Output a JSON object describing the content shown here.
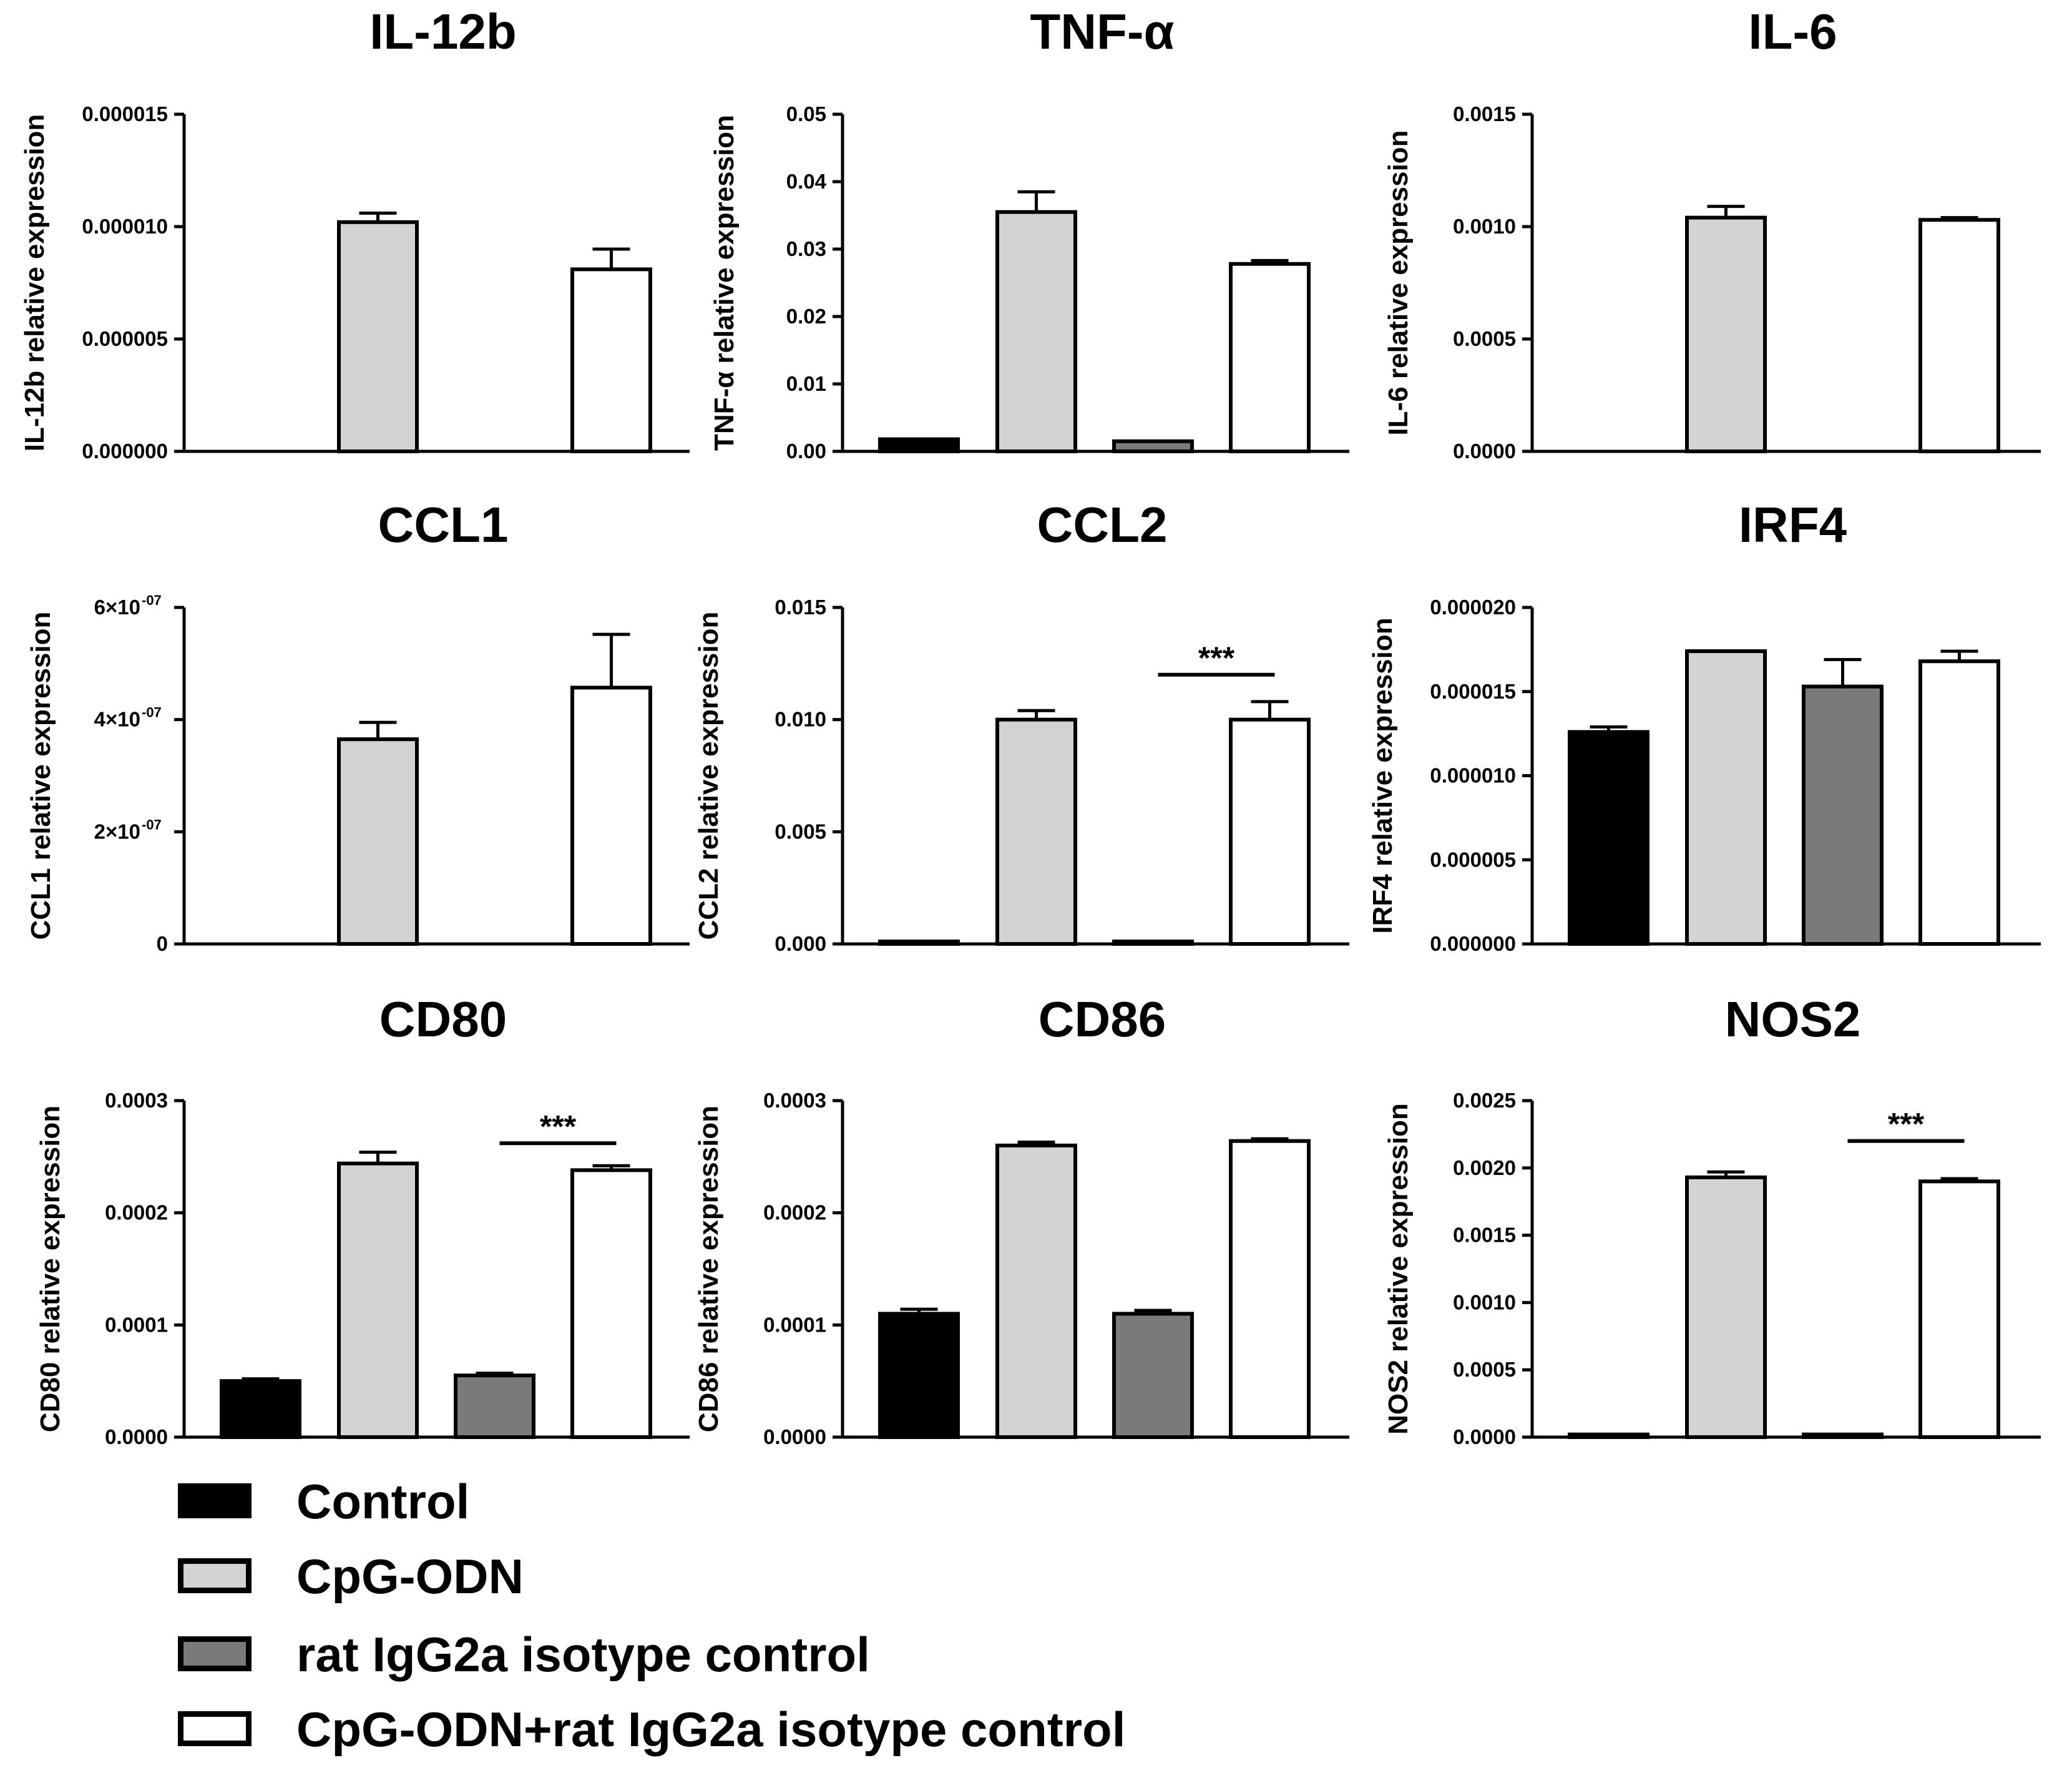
{
  "legend": [
    {
      "name": "Control",
      "color": "#000000"
    },
    {
      "name": "CpG-ODN",
      "color": "#d3d3d3"
    },
    {
      "name": "rat IgG2a isotype control",
      "color": "#7a7a7a"
    },
    {
      "name": "CpG-ODN+rat IgG2a isotype control",
      "color": "#ffffff"
    }
  ],
  "chart_data": [
    {
      "type": "bar",
      "title": "IL-12b",
      "ylabel": "IL-12b relative expression",
      "categories": [
        "Control",
        "CpG-ODN",
        "rat IgG2a isotype control",
        "CpG-ODN+rat IgG2a isotype control"
      ],
      "values": [
        0,
        1.02e-05,
        0,
        8.1e-06
      ],
      "errors": [
        0,
        4e-07,
        0,
        9e-07
      ],
      "ylim": [
        0,
        1.5e-05
      ],
      "ticks": [
        0,
        5e-06,
        1e-05,
        1.5e-05
      ],
      "tick_labels": [
        "0.000000",
        "0.000005",
        "0.000010",
        "0.000015"
      ],
      "annotations": []
    },
    {
      "type": "bar",
      "title": "TNF-α",
      "ylabel": "TNF-α relative expression",
      "categories": [
        "Control",
        "CpG-ODN",
        "rat IgG2a isotype control",
        "CpG-ODN+rat IgG2a isotype control"
      ],
      "values": [
        0.0018,
        0.0355,
        0.0015,
        0.0278
      ],
      "errors": [
        0,
        0.003,
        0,
        0.0005
      ],
      "ylim": [
        0,
        0.05
      ],
      "ticks": [
        0,
        0.01,
        0.02,
        0.03,
        0.04,
        0.05
      ],
      "tick_labels": [
        "0.00",
        "0.01",
        "0.02",
        "0.03",
        "0.04",
        "0.05"
      ],
      "annotations": []
    },
    {
      "type": "bar",
      "title": "IL-6",
      "ylabel": "IL-6 relative expression",
      "categories": [
        "Control",
        "CpG-ODN",
        "rat IgG2a isotype control",
        "CpG-ODN+rat IgG2a isotype control"
      ],
      "values": [
        0,
        0.00104,
        0,
        0.00103
      ],
      "errors": [
        0,
        5e-05,
        0,
        1e-05
      ],
      "ylim": [
        0,
        0.0015
      ],
      "ticks": [
        0,
        0.0005,
        0.001,
        0.0015
      ],
      "tick_labels": [
        "0.0000",
        "0.0005",
        "0.0010",
        "0.0015"
      ],
      "annotations": []
    },
    {
      "type": "bar",
      "title": "CCL1",
      "ylabel": "CCL1 relative expression",
      "categories": [
        "Control",
        "CpG-ODN",
        "rat IgG2a isotype control",
        "CpG-ODN+rat IgG2a isotype control"
      ],
      "values": [
        0,
        3.65e-07,
        0,
        4.57e-07
      ],
      "errors": [
        0,
        3e-08,
        0,
        9.5e-08
      ],
      "ylim": [
        0,
        6e-07
      ],
      "ticks": [
        0,
        2e-07,
        4e-07,
        6e-07
      ],
      "tick_labels": [
        "0",
        "2×10",
        "4×10",
        "6×10"
      ],
      "tick_exponents": [
        "",
        "-07",
        "-07",
        "-07"
      ],
      "annotations": []
    },
    {
      "type": "bar",
      "title": "CCL2",
      "ylabel": "CCL2 relative expression",
      "categories": [
        "Control",
        "CpG-ODN",
        "rat IgG2a isotype control",
        "CpG-ODN+rat IgG2a isotype control"
      ],
      "values": [
        0.0001,
        0.01,
        0.0001,
        0.01
      ],
      "errors": [
        0,
        0.0004,
        0,
        0.0008
      ],
      "ylim": [
        0,
        0.015
      ],
      "ticks": [
        0,
        0.005,
        0.01,
        0.015
      ],
      "tick_labels": [
        "0.000",
        "0.005",
        "0.010",
        "0.015"
      ],
      "annotations": [
        {
          "text": "***",
          "from": 2,
          "to": 3,
          "y": 0.012
        }
      ]
    },
    {
      "type": "bar",
      "title": "IRF4",
      "ylabel": "IRF4 relative expression",
      "categories": [
        "Control",
        "CpG-ODN",
        "rat IgG2a isotype control",
        "CpG-ODN+rat IgG2a isotype control"
      ],
      "values": [
        1.26e-05,
        1.74e-05,
        1.53e-05,
        1.68e-05
      ],
      "errors": [
        3e-07,
        0,
        1.6e-06,
        6e-07
      ],
      "ylim": [
        0,
        2e-05
      ],
      "ticks": [
        0,
        5e-06,
        1e-05,
        1.5e-05,
        2e-05
      ],
      "tick_labels": [
        "0.000000",
        "0.000005",
        "0.000010",
        "0.000015",
        "0.000020"
      ],
      "annotations": []
    },
    {
      "type": "bar",
      "title": "CD80",
      "ylabel": "CD80 relative expression",
      "categories": [
        "Control",
        "CpG-ODN",
        "rat IgG2a isotype control",
        "CpG-ODN+rat IgG2a isotype control"
      ],
      "values": [
        5e-05,
        0.000244,
        5.5e-05,
        0.000238
      ],
      "errors": [
        2e-06,
        1e-05,
        2e-06,
        4e-06
      ],
      "ylim": [
        0,
        0.0003
      ],
      "ticks": [
        0,
        0.0001,
        0.0002,
        0.0003
      ],
      "tick_labels": [
        "0.0000",
        "0.0001",
        "0.0002",
        "0.0003"
      ],
      "annotations": [
        {
          "text": "***",
          "from": 2,
          "to": 3,
          "y": 0.000262
        }
      ]
    },
    {
      "type": "bar",
      "title": "CD86",
      "ylabel": "CD86 relative expression",
      "categories": [
        "Control",
        "CpG-ODN",
        "rat IgG2a isotype control",
        "CpG-ODN+rat IgG2a isotype control"
      ],
      "values": [
        0.00011,
        0.00026,
        0.00011,
        0.000264
      ],
      "errors": [
        4e-06,
        3e-06,
        3e-06,
        2e-06
      ],
      "ylim": [
        0,
        0.0003
      ],
      "ticks": [
        0,
        0.0001,
        0.0002,
        0.0003
      ],
      "tick_labels": [
        "0.0000",
        "0.0001",
        "0.0002",
        "0.0003"
      ],
      "annotations": []
    },
    {
      "type": "bar",
      "title": "NOS2",
      "ylabel": "NOS2 relative expression",
      "categories": [
        "Control",
        "CpG-ODN",
        "rat IgG2a isotype control",
        "CpG-ODN+rat IgG2a isotype control"
      ],
      "values": [
        2e-05,
        0.00193,
        2e-05,
        0.0019
      ],
      "errors": [
        0,
        4e-05,
        0,
        2e-05
      ],
      "ylim": [
        0,
        0.0025
      ],
      "ticks": [
        0,
        0.0005,
        0.001,
        0.0015,
        0.002,
        0.0025
      ],
      "tick_labels": [
        "0.0000",
        "0.0005",
        "0.0010",
        "0.0015",
        "0.0020",
        "0.0025"
      ],
      "annotations": [
        {
          "text": "***",
          "from": 2,
          "to": 3,
          "y": 0.0022
        }
      ]
    }
  ]
}
